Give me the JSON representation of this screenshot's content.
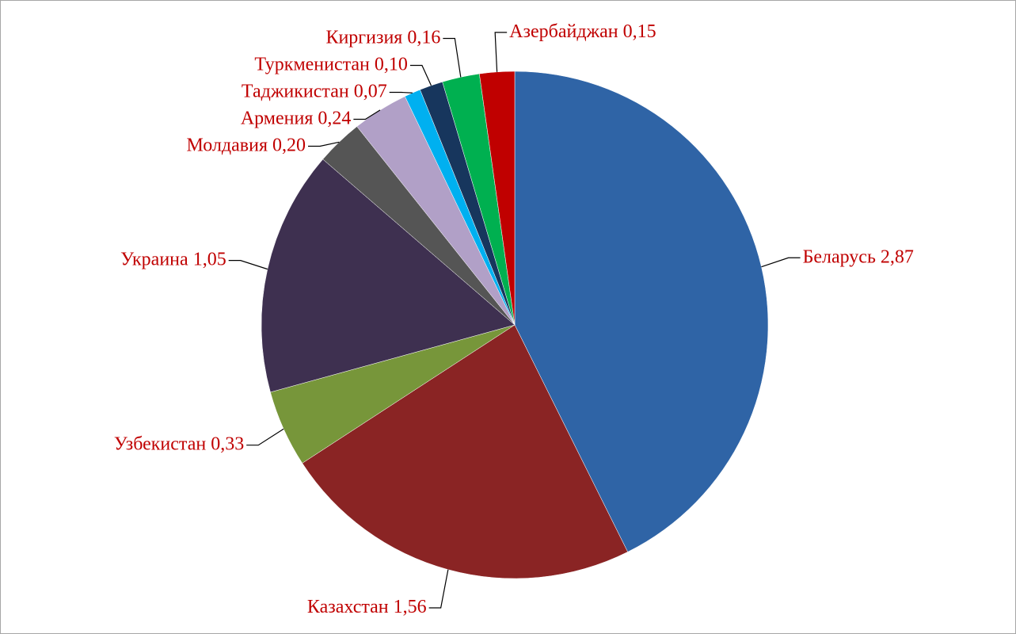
{
  "chart_data": {
    "type": "pie",
    "categories": [
      "Беларусь",
      "Казахстан",
      "Узбекистан",
      "Украина",
      "Молдавия",
      "Армения",
      "Таджикистан",
      "Туркменистан",
      "Киргизия",
      "Азербайджан"
    ],
    "values": [
      2.87,
      1.56,
      0.33,
      1.05,
      0.2,
      0.24,
      0.07,
      0.1,
      0.16,
      0.15
    ],
    "value_labels": [
      "2,87",
      "1,56",
      "0,33",
      "1,05",
      "0,20",
      "0,24",
      "0,07",
      "0,10",
      "0,16",
      "0,15"
    ],
    "colors": [
      "#2f64a6",
      "#8a2424",
      "#77963a",
      "#3e3050",
      "#555555",
      "#b1a0c7",
      "#00b0f0",
      "#17365d",
      "#00b050",
      "#c00000"
    ]
  }
}
